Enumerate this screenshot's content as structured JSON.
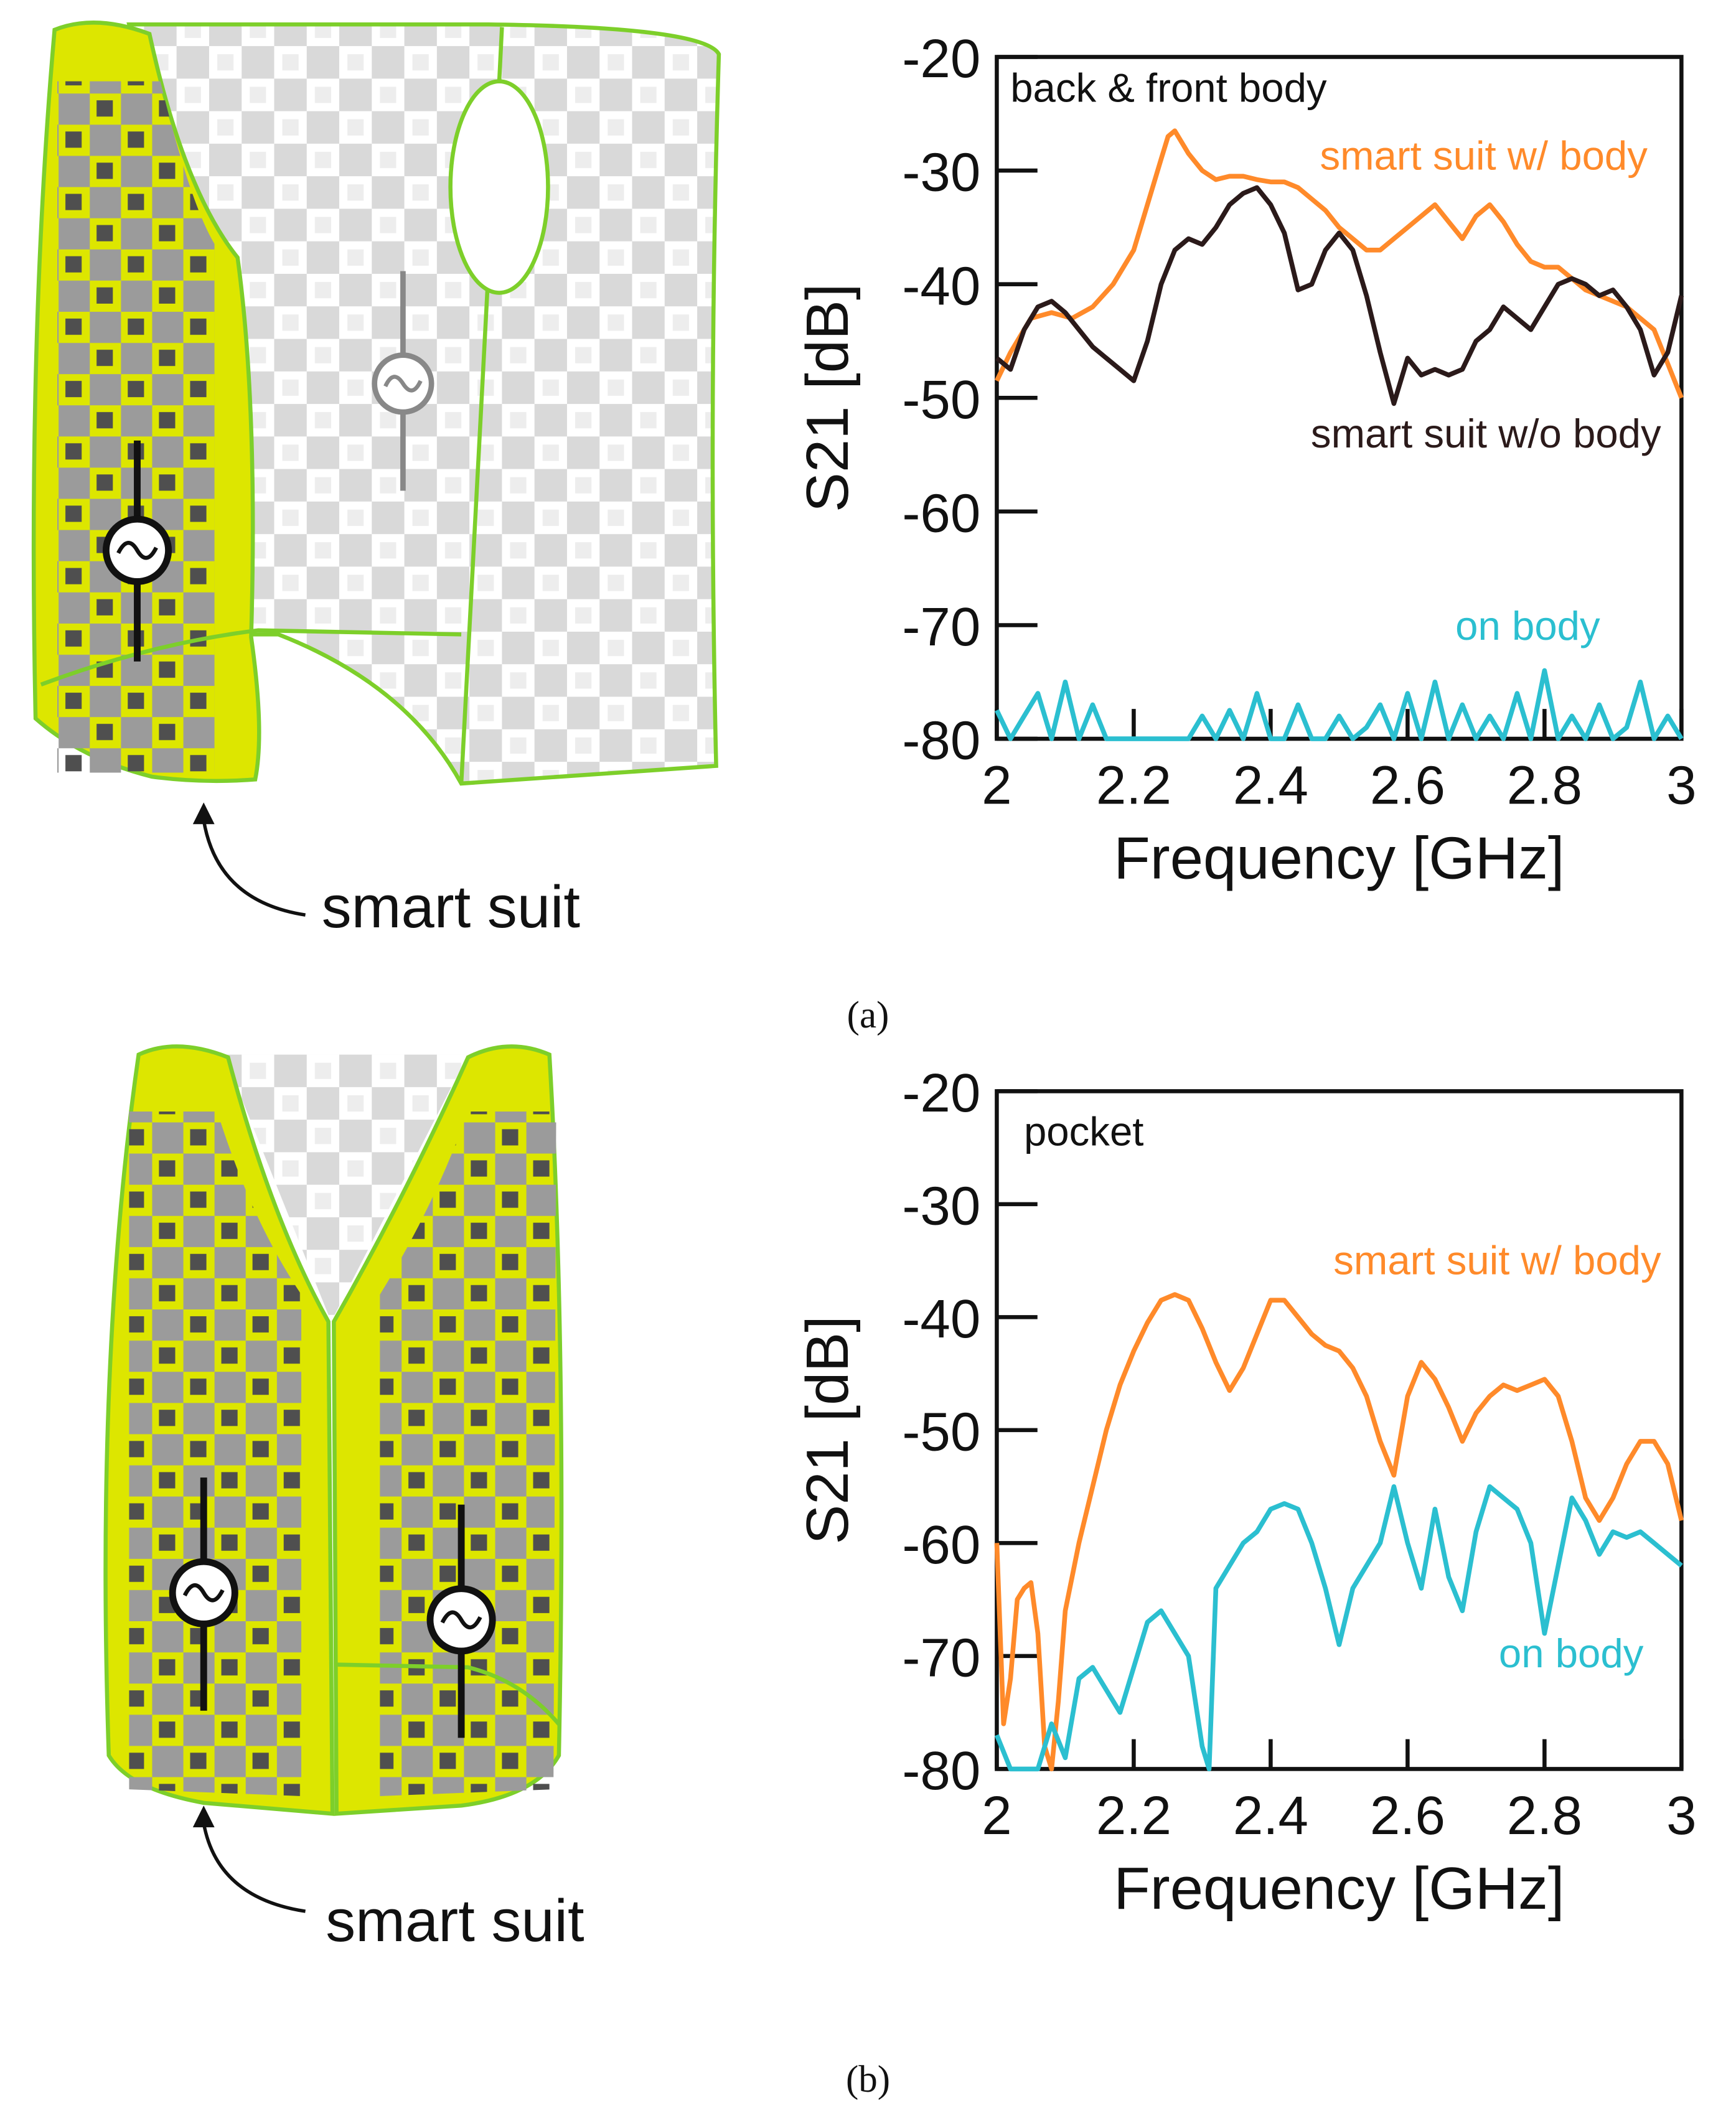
{
  "panels": [
    {
      "vest_label": "smart suit",
      "caption": "(a)"
    },
    {
      "vest_label": "smart suit",
      "caption": "(b)"
    }
  ],
  "colors": {
    "orange": "#ff8a2a",
    "black": "#2b1a1a",
    "cyan": "#2bbfd0",
    "vest_yellow": "#dde600",
    "vest_outline": "#7dcf2a",
    "checker_gray": "#9b9b9b",
    "checker_dark": "#4f4f4f",
    "checker_light": "#d6d6d6"
  },
  "chart_data": [
    {
      "type": "line",
      "annotation": "back & front body",
      "xlabel": "Frequency [GHz]",
      "ylabel": "S21 [dB]",
      "xlim": [
        2,
        3
      ],
      "ylim": [
        -80,
        -20
      ],
      "xticks": [
        "2",
        "2.2",
        "2.4",
        "2.6",
        "2.8",
        "3"
      ],
      "yticks": [
        "-20",
        "-30",
        "-40",
        "-50",
        "-60",
        "-70",
        "-80"
      ],
      "grid": false,
      "series": [
        {
          "name": "smart suit w/ body",
          "color": "#ff8a2a",
          "x": [
            2.0,
            2.02,
            2.05,
            2.08,
            2.11,
            2.14,
            2.17,
            2.2,
            2.22,
            2.24,
            2.25,
            2.26,
            2.28,
            2.3,
            2.32,
            2.34,
            2.36,
            2.38,
            2.4,
            2.42,
            2.44,
            2.46,
            2.48,
            2.5,
            2.52,
            2.54,
            2.56,
            2.58,
            2.6,
            2.62,
            2.64,
            2.66,
            2.68,
            2.7,
            2.72,
            2.74,
            2.76,
            2.78,
            2.8,
            2.82,
            2.84,
            2.86,
            2.88,
            2.9,
            2.92,
            2.94,
            2.96,
            2.98,
            3.0
          ],
          "values": [
            -48.5,
            -46,
            -43,
            -42.5,
            -43,
            -42,
            -40,
            -37,
            -33,
            -29,
            -27,
            -26.5,
            -28.5,
            -30,
            -30.8,
            -30.5,
            -30.5,
            -30.8,
            -31,
            -31,
            -31.5,
            -32.5,
            -33.5,
            -35,
            -36,
            -37,
            -37,
            -36,
            -35,
            -34,
            -33,
            -34.5,
            -36,
            -34,
            -33,
            -34.5,
            -36.5,
            -38,
            -38.5,
            -38.5,
            -39.5,
            -40.5,
            -41,
            -41.5,
            -42,
            -43,
            -44,
            -47,
            -50
          ]
        },
        {
          "name": "smart suit w/o body",
          "color": "#2b1a1a",
          "x": [
            2.0,
            2.02,
            2.04,
            2.06,
            2.08,
            2.1,
            2.12,
            2.14,
            2.16,
            2.18,
            2.2,
            2.22,
            2.24,
            2.26,
            2.28,
            2.3,
            2.32,
            2.34,
            2.36,
            2.38,
            2.4,
            2.42,
            2.44,
            2.46,
            2.48,
            2.5,
            2.52,
            2.54,
            2.56,
            2.58,
            2.6,
            2.62,
            2.64,
            2.66,
            2.68,
            2.7,
            2.72,
            2.74,
            2.76,
            2.78,
            2.8,
            2.82,
            2.84,
            2.86,
            2.88,
            2.9,
            2.92,
            2.94,
            2.96,
            2.98,
            3.0
          ],
          "values": [
            -46.5,
            -47.5,
            -44,
            -42,
            -41.5,
            -42.5,
            -44,
            -45.5,
            -46.5,
            -47.5,
            -48.5,
            -45,
            -40,
            -37,
            -36,
            -36.5,
            -35,
            -33,
            -32,
            -31.5,
            -33,
            -35.5,
            -40.5,
            -40,
            -37,
            -35.5,
            -37,
            -41,
            -46,
            -50.5,
            -46.5,
            -48,
            -47.5,
            -48,
            -47.5,
            -45,
            -44,
            -42,
            -43,
            -44,
            -42,
            -40,
            -39.5,
            -40,
            -41,
            -40.5,
            -42,
            -44,
            -48,
            -46,
            -41
          ]
        },
        {
          "name": "on body",
          "color": "#2bbfd0",
          "x": [
            2.0,
            2.02,
            2.04,
            2.06,
            2.08,
            2.1,
            2.12,
            2.14,
            2.16,
            2.18,
            2.2,
            2.22,
            2.24,
            2.26,
            2.28,
            2.3,
            2.32,
            2.34,
            2.36,
            2.38,
            2.4,
            2.42,
            2.44,
            2.46,
            2.48,
            2.5,
            2.52,
            2.54,
            2.56,
            2.58,
            2.6,
            2.62,
            2.64,
            2.66,
            2.68,
            2.7,
            2.72,
            2.74,
            2.76,
            2.78,
            2.8,
            2.82,
            2.84,
            2.86,
            2.88,
            2.9,
            2.92,
            2.94,
            2.96,
            2.98,
            3.0
          ],
          "values": [
            -77.5,
            -80,
            -78,
            -76,
            -80,
            -75,
            -80,
            -77,
            -80,
            -80,
            -80,
            -80,
            -80,
            -80,
            -80,
            -78,
            -80,
            -77.5,
            -80,
            -76,
            -80,
            -80,
            -77,
            -80,
            -80,
            -78,
            -80,
            -79,
            -77,
            -80,
            -76,
            -80,
            -75,
            -80,
            -77,
            -80,
            -78,
            -80,
            -76,
            -80,
            -74,
            -80,
            -78,
            -80,
            -77,
            -80,
            -79,
            -75,
            -80,
            -78,
            -80
          ]
        }
      ]
    },
    {
      "type": "line",
      "annotation": "pocket",
      "xlabel": "Frequency [GHz]",
      "ylabel": "S21 [dB]",
      "xlim": [
        2,
        3
      ],
      "ylim": [
        -80,
        -20
      ],
      "xticks": [
        "2",
        "2.2",
        "2.4",
        "2.6",
        "2.8",
        "3"
      ],
      "yticks": [
        "-20",
        "-30",
        "-40",
        "-50",
        "-60",
        "-70",
        "-80"
      ],
      "grid": false,
      "series": [
        {
          "name": "smart suit w/ body",
          "color": "#ff8a2a",
          "x": [
            2.0,
            2.01,
            2.02,
            2.03,
            2.04,
            2.05,
            2.06,
            2.07,
            2.08,
            2.09,
            2.1,
            2.12,
            2.14,
            2.16,
            2.18,
            2.2,
            2.22,
            2.24,
            2.26,
            2.28,
            2.3,
            2.32,
            2.34,
            2.36,
            2.38,
            2.4,
            2.42,
            2.44,
            2.46,
            2.48,
            2.5,
            2.52,
            2.54,
            2.56,
            2.58,
            2.6,
            2.62,
            2.64,
            2.66,
            2.68,
            2.7,
            2.72,
            2.74,
            2.76,
            2.78,
            2.8,
            2.82,
            2.84,
            2.86,
            2.88,
            2.9,
            2.92,
            2.94,
            2.96,
            2.98,
            3.0
          ],
          "values": [
            -60,
            -76,
            -72,
            -65,
            -64,
            -63.5,
            -68,
            -78,
            -80,
            -74,
            -66,
            -60,
            -55,
            -50,
            -46,
            -43,
            -40.5,
            -38.5,
            -38,
            -38.5,
            -41,
            -44,
            -46.5,
            -44.5,
            -41.5,
            -38.5,
            -38.5,
            -40,
            -41.5,
            -42.5,
            -43,
            -44.5,
            -47,
            -51,
            -54,
            -47,
            -44,
            -45.5,
            -48,
            -51,
            -48.5,
            -47,
            -46,
            -46.5,
            -46,
            -45.5,
            -47,
            -51,
            -56,
            -58,
            -56,
            -53,
            -51,
            -51,
            -53,
            -58
          ]
        },
        {
          "name": "on body",
          "color": "#2bbfd0",
          "x": [
            2.0,
            2.02,
            2.04,
            2.06,
            2.08,
            2.1,
            2.12,
            2.14,
            2.16,
            2.18,
            2.2,
            2.22,
            2.24,
            2.26,
            2.28,
            2.3,
            2.31,
            2.32,
            2.34,
            2.36,
            2.38,
            2.4,
            2.42,
            2.44,
            2.46,
            2.48,
            2.5,
            2.52,
            2.54,
            2.56,
            2.58,
            2.6,
            2.62,
            2.64,
            2.66,
            2.68,
            2.7,
            2.72,
            2.74,
            2.76,
            2.78,
            2.8,
            2.82,
            2.84,
            2.86,
            2.88,
            2.9,
            2.92,
            2.94,
            2.96,
            2.98,
            3.0
          ],
          "values": [
            -77,
            -80,
            -80,
            -80,
            -76,
            -79,
            -72,
            -71,
            -73,
            -75,
            -71,
            -67,
            -66,
            -68,
            -70,
            -78,
            -80,
            -64,
            -62,
            -60,
            -59,
            -57,
            -56.5,
            -57,
            -60,
            -64,
            -69,
            -64,
            -62,
            -60,
            -55,
            -60,
            -64,
            -57,
            -63,
            -66,
            -59,
            -55,
            -56,
            -57,
            -60,
            -68,
            -62,
            -56,
            -58,
            -61,
            -59,
            -59.5,
            -59,
            -60,
            -61,
            -62
          ]
        }
      ]
    }
  ]
}
